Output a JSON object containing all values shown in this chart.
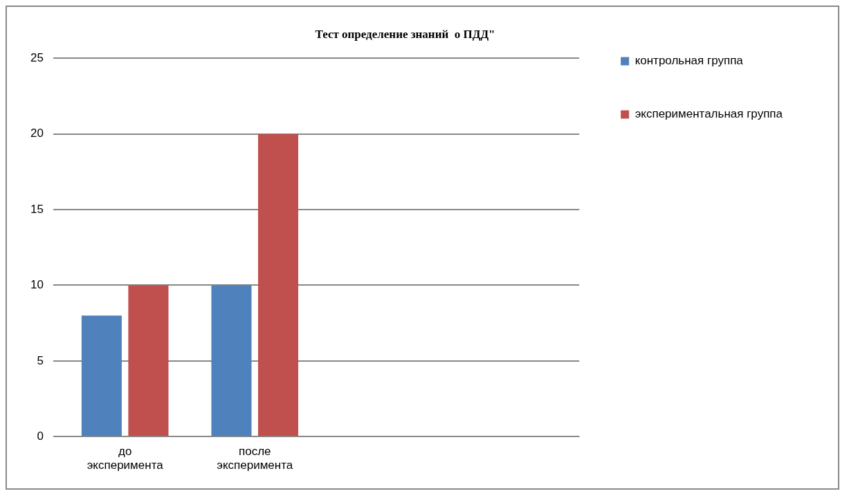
{
  "chart_data": {
    "type": "bar",
    "title": "Тест определение знаний  о ПДД\"",
    "categories": [
      "до эксперимента",
      "после эксперимента",
      null,
      null
    ],
    "series": [
      {
        "name": "контрольная группа",
        "color": "#4f81bd",
        "values": [
          8,
          10,
          null,
          null
        ]
      },
      {
        "name": "экспериментальная группа",
        "color": "#c0504d",
        "values": [
          10,
          20,
          null,
          null
        ]
      }
    ],
    "ylim": [
      0,
      25
    ],
    "yticks": [
      0,
      5,
      10,
      15,
      20,
      25
    ],
    "grid": "y",
    "legend": "right"
  }
}
